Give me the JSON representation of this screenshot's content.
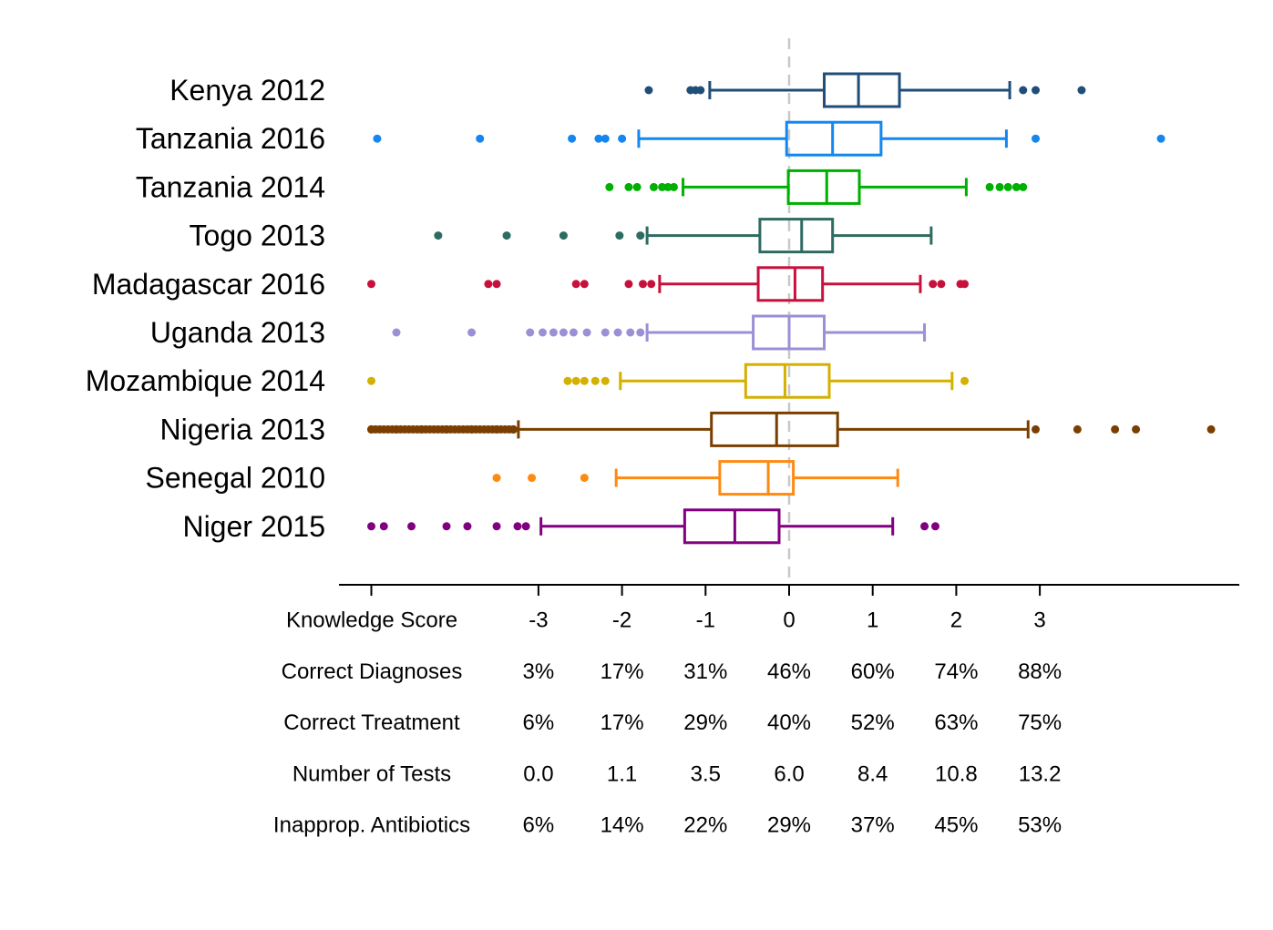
{
  "chart_data": {
    "type": "boxplot",
    "orientation": "horizontal",
    "reference_line": {
      "x": 0,
      "style": "dashed",
      "color": "#c8c8c8"
    },
    "grid": false,
    "legend": "none",
    "series": [
      {
        "name": "Kenya 2012",
        "color": "#1f4e79",
        "whisker_low": -0.95,
        "q1": 0.42,
        "median": 0.83,
        "q3": 1.32,
        "whisker_high": 2.64,
        "outliers": [
          -1.68,
          -1.18,
          -1.12,
          -1.06,
          2.8,
          2.95,
          3.5
        ]
      },
      {
        "name": "Tanzania 2016",
        "color": "#1486f0",
        "whisker_low": -1.8,
        "q1": -0.03,
        "median": 0.52,
        "q3": 1.1,
        "whisker_high": 2.6,
        "outliers": [
          -4.93,
          -3.7,
          -2.6,
          -2.28,
          -2.2,
          -2.0,
          2.95,
          4.45
        ]
      },
      {
        "name": "Tanzania 2014",
        "color": "#00b000",
        "whisker_low": -1.27,
        "q1": -0.01,
        "median": 0.45,
        "q3": 0.84,
        "whisker_high": 2.12,
        "outliers": [
          -2.15,
          -1.92,
          -1.82,
          -1.62,
          -1.52,
          -1.45,
          -1.38,
          2.4,
          2.52,
          2.62,
          2.72,
          2.8
        ]
      },
      {
        "name": "Togo 2013",
        "color": "#2e6b63",
        "whisker_low": -1.7,
        "q1": -0.35,
        "median": 0.15,
        "q3": 0.52,
        "whisker_high": 1.7,
        "outliers": [
          -4.2,
          -3.38,
          -2.7,
          -2.03,
          -1.78
        ]
      },
      {
        "name": "Madagascar 2016",
        "color": "#c8103c",
        "whisker_low": -1.55,
        "q1": -0.37,
        "median": 0.07,
        "q3": 0.4,
        "whisker_high": 1.57,
        "outliers": [
          -5.0,
          -3.6,
          -3.5,
          -2.55,
          -2.45,
          -1.92,
          -1.75,
          -1.65,
          1.72,
          1.82,
          2.05,
          2.1
        ]
      },
      {
        "name": "Uganda 2013",
        "color": "#9b8fd6",
        "whisker_low": -1.7,
        "q1": -0.43,
        "median": 0.0,
        "q3": 0.42,
        "whisker_high": 1.62,
        "outliers": [
          -4.7,
          -3.8,
          -3.1,
          -2.95,
          -2.82,
          -2.7,
          -2.58,
          -2.42,
          -2.2,
          -2.05,
          -1.9,
          -1.78
        ]
      },
      {
        "name": "Mozambique 2014",
        "color": "#d4b000",
        "whisker_low": -2.02,
        "q1": -0.52,
        "median": -0.05,
        "q3": 0.48,
        "whisker_high": 1.95,
        "outliers": [
          -5.0,
          -2.65,
          -2.55,
          -2.45,
          -2.32,
          -2.2,
          2.1
        ]
      },
      {
        "name": "Nigeria 2013",
        "color": "#7a3f00",
        "whisker_low": -3.24,
        "q1": -0.93,
        "median": -0.15,
        "q3": 0.58,
        "whisker_high": 2.86,
        "outliers": [
          -5.0,
          -4.7,
          -4.4,
          -4.1,
          -3.8,
          -3.5,
          -3.3,
          2.95,
          3.45,
          3.9,
          4.15,
          5.05
        ]
      },
      {
        "name": "Senegal 2010",
        "color": "#ff8a10",
        "whisker_low": -2.07,
        "q1": -0.83,
        "median": -0.25,
        "q3": 0.05,
        "whisker_high": 1.3,
        "outliers": [
          -3.5,
          -3.08,
          -2.45
        ]
      },
      {
        "name": "Niger 2015",
        "color": "#800080",
        "whisker_low": -2.97,
        "q1": -1.25,
        "median": -0.65,
        "q3": -0.12,
        "whisker_high": 1.24,
        "outliers": [
          -5.0,
          -4.85,
          -4.52,
          -4.1,
          -3.85,
          -3.5,
          -3.25,
          -3.15,
          1.62,
          1.75
        ]
      }
    ],
    "xlim": [
      -5.4,
      5.4
    ],
    "x_ticks": [
      -5,
      -3,
      -2,
      -1,
      0,
      1,
      2,
      3
    ],
    "tick_table": {
      "rows": [
        {
          "label": "Knowledge Score",
          "values": [
            "-3",
            "-2",
            "-1",
            "0",
            "1",
            "2",
            "3"
          ]
        },
        {
          "label": "Correct Diagnoses",
          "values": [
            "3%",
            "17%",
            "31%",
            "46%",
            "60%",
            "74%",
            "88%"
          ]
        },
        {
          "label": "Correct Treatment",
          "values": [
            "6%",
            "17%",
            "29%",
            "40%",
            "52%",
            "63%",
            "75%"
          ]
        },
        {
          "label": "Number of Tests",
          "values": [
            "0.0",
            "1.1",
            "3.5",
            "6.0",
            "8.4",
            "10.8",
            "13.2"
          ]
        },
        {
          "label": "Inapprop. Antibiotics",
          "values": [
            "6%",
            "14%",
            "22%",
            "29%",
            "37%",
            "45%",
            "53%"
          ]
        }
      ]
    }
  }
}
